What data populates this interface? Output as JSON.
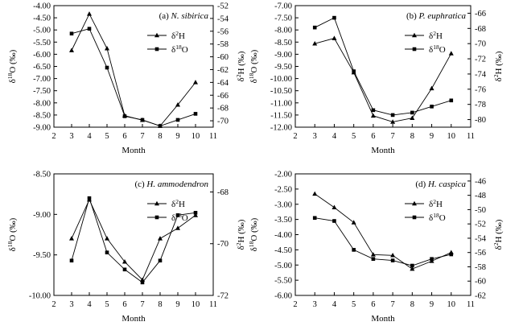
{
  "chart_data": [
    {
      "type": "line",
      "panel_label": "(a)",
      "species": "N. sibirica",
      "xlabel": "Month",
      "ylabel_left": "δ18O (‰)",
      "ylabel_right": "δ2H (‰)",
      "xlim": [
        2,
        11
      ],
      "ylim_left": [
        -9.0,
        -4.0
      ],
      "ylim_right": [
        -71,
        -52
      ],
      "x_ticks": [
        "2",
        "3",
        "4",
        "5",
        "6",
        "7",
        "8",
        "9",
        "10",
        "11"
      ],
      "y_left_ticks": [
        "-4.00",
        "-4.50",
        "-5.00",
        "-5.50",
        "-6.00",
        "-6.50",
        "-7.00",
        "-7.50",
        "-8.00",
        "-8.50",
        "-9.00"
      ],
      "y_right_ticks": [
        "-52",
        "-54",
        "-56",
        "-58",
        "-60",
        "-62",
        "-64",
        "-66",
        "-68",
        "-70"
      ],
      "legend_position": "top-right",
      "x": [
        3,
        4,
        5,
        6,
        7,
        8,
        9,
        10
      ],
      "series": [
        {
          "name": "δ2H",
          "axis": "right",
          "marker": "triangle",
          "values": [
            -59.0,
            -53.3,
            -58.7,
            -69.2,
            -69.9,
            -70.8,
            -67.5,
            -64.0
          ]
        },
        {
          "name": "δ18O",
          "axis": "left",
          "marker": "square",
          "values": [
            -5.15,
            -4.95,
            -6.55,
            -8.55,
            -8.7,
            -8.95,
            -8.7,
            -8.45
          ]
        }
      ]
    },
    {
      "type": "line",
      "panel_label": "(b)",
      "species": "P. euphratica",
      "xlabel": "Month",
      "ylabel_left": "δ18O (‰)",
      "ylabel_right": "δ2H (‰)",
      "xlim": [
        2,
        11
      ],
      "ylim_left": [
        -12.0,
        -7.0
      ],
      "ylim_right": [
        -81,
        -65
      ],
      "x_ticks": [
        "2",
        "3",
        "4",
        "5",
        "6",
        "7",
        "8",
        "9",
        "10",
        "11"
      ],
      "y_left_ticks": [
        "-7.00",
        "-7.50",
        "-8.00",
        "-8.50",
        "-9.00",
        "-9.50",
        "-10.00",
        "-10.50",
        "-11.00",
        "-11.50",
        "-12.00"
      ],
      "y_right_ticks": [
        "-66",
        "-68",
        "-70",
        "-72",
        "-74",
        "-76",
        "-78",
        "-80"
      ],
      "legend_position": "top-right",
      "x": [
        3,
        4,
        5,
        6,
        7,
        8,
        9,
        10
      ],
      "series": [
        {
          "name": "δ2H",
          "axis": "right",
          "marker": "triangle",
          "values": [
            -70.0,
            -69.3,
            -73.8,
            -79.5,
            -80.3,
            -79.8,
            -75.9,
            -71.3
          ]
        },
        {
          "name": "δ18O",
          "axis": "left",
          "marker": "square",
          "values": [
            -7.9,
            -7.5,
            -9.7,
            -11.3,
            -11.5,
            -11.4,
            -11.15,
            -10.9
          ]
        }
      ]
    },
    {
      "type": "line",
      "panel_label": "(c)",
      "species": "H. ammodendron",
      "xlabel": "Month",
      "ylabel_left": "δ18O (‰)",
      "ylabel_right": "δ2H (‰)",
      "xlim": [
        2,
        11
      ],
      "ylim_left": [
        -10.0,
        -8.5
      ],
      "ylim_right": [
        -72,
        -67.3
      ],
      "x_ticks": [
        "2",
        "3",
        "4",
        "5",
        "6",
        "7",
        "8",
        "9",
        "10",
        "11"
      ],
      "y_left_ticks": [
        "-8.50",
        "-9.00",
        "-9.50",
        "-10.00"
      ],
      "y_right_ticks": [
        "-68",
        "-70",
        "-72"
      ],
      "legend_position": "top-right",
      "x": [
        3,
        4,
        5,
        6,
        7,
        8,
        9,
        10
      ],
      "series": [
        {
          "name": "δ2H",
          "axis": "right",
          "marker": "triangle",
          "values": [
            -69.8,
            -68.3,
            -69.8,
            -70.7,
            -71.4,
            -69.8,
            -69.4,
            -68.9
          ]
        },
        {
          "name": "δ18O",
          "axis": "left",
          "marker": "square",
          "values": [
            -9.57,
            -8.8,
            -9.47,
            -9.68,
            -9.84,
            -9.57,
            -9.01,
            -8.98
          ]
        }
      ]
    },
    {
      "type": "line",
      "panel_label": "(d)",
      "species": "H. caspica",
      "xlabel": "Month",
      "ylabel_left": "δ18O (‰)",
      "ylabel_right": "δ2H (‰)",
      "xlim": [
        2,
        11
      ],
      "ylim_left": [
        -6.0,
        -2.0
      ],
      "ylim_right": [
        -62,
        -45
      ],
      "x_ticks": [
        "2",
        "3",
        "4",
        "5",
        "6",
        "7",
        "8",
        "9",
        "10",
        "11"
      ],
      "y_left_ticks": [
        "-2.00",
        "-2.50",
        "-3.00",
        "-3.50",
        "-4.00",
        "-4.50",
        "-5.00",
        "-5.50",
        "-6.00"
      ],
      "y_right_ticks": [
        "-46",
        "-48",
        "-50",
        "-52",
        "-54",
        "-56",
        "-58",
        "-60",
        "-62"
      ],
      "legend_position": "top-right",
      "x": [
        3,
        4,
        5,
        6,
        7,
        8,
        9,
        10
      ],
      "series": [
        {
          "name": "δ2H",
          "axis": "right",
          "marker": "triangle",
          "values": [
            -47.8,
            -49.7,
            -51.8,
            -56.3,
            -56.4,
            -58.3,
            -57.2,
            -56.0
          ]
        },
        {
          "name": "δ18O",
          "axis": "left",
          "marker": "square",
          "values": [
            -3.45,
            -3.55,
            -4.5,
            -4.8,
            -4.85,
            -5.02,
            -4.8,
            -4.65
          ]
        }
      ]
    }
  ]
}
